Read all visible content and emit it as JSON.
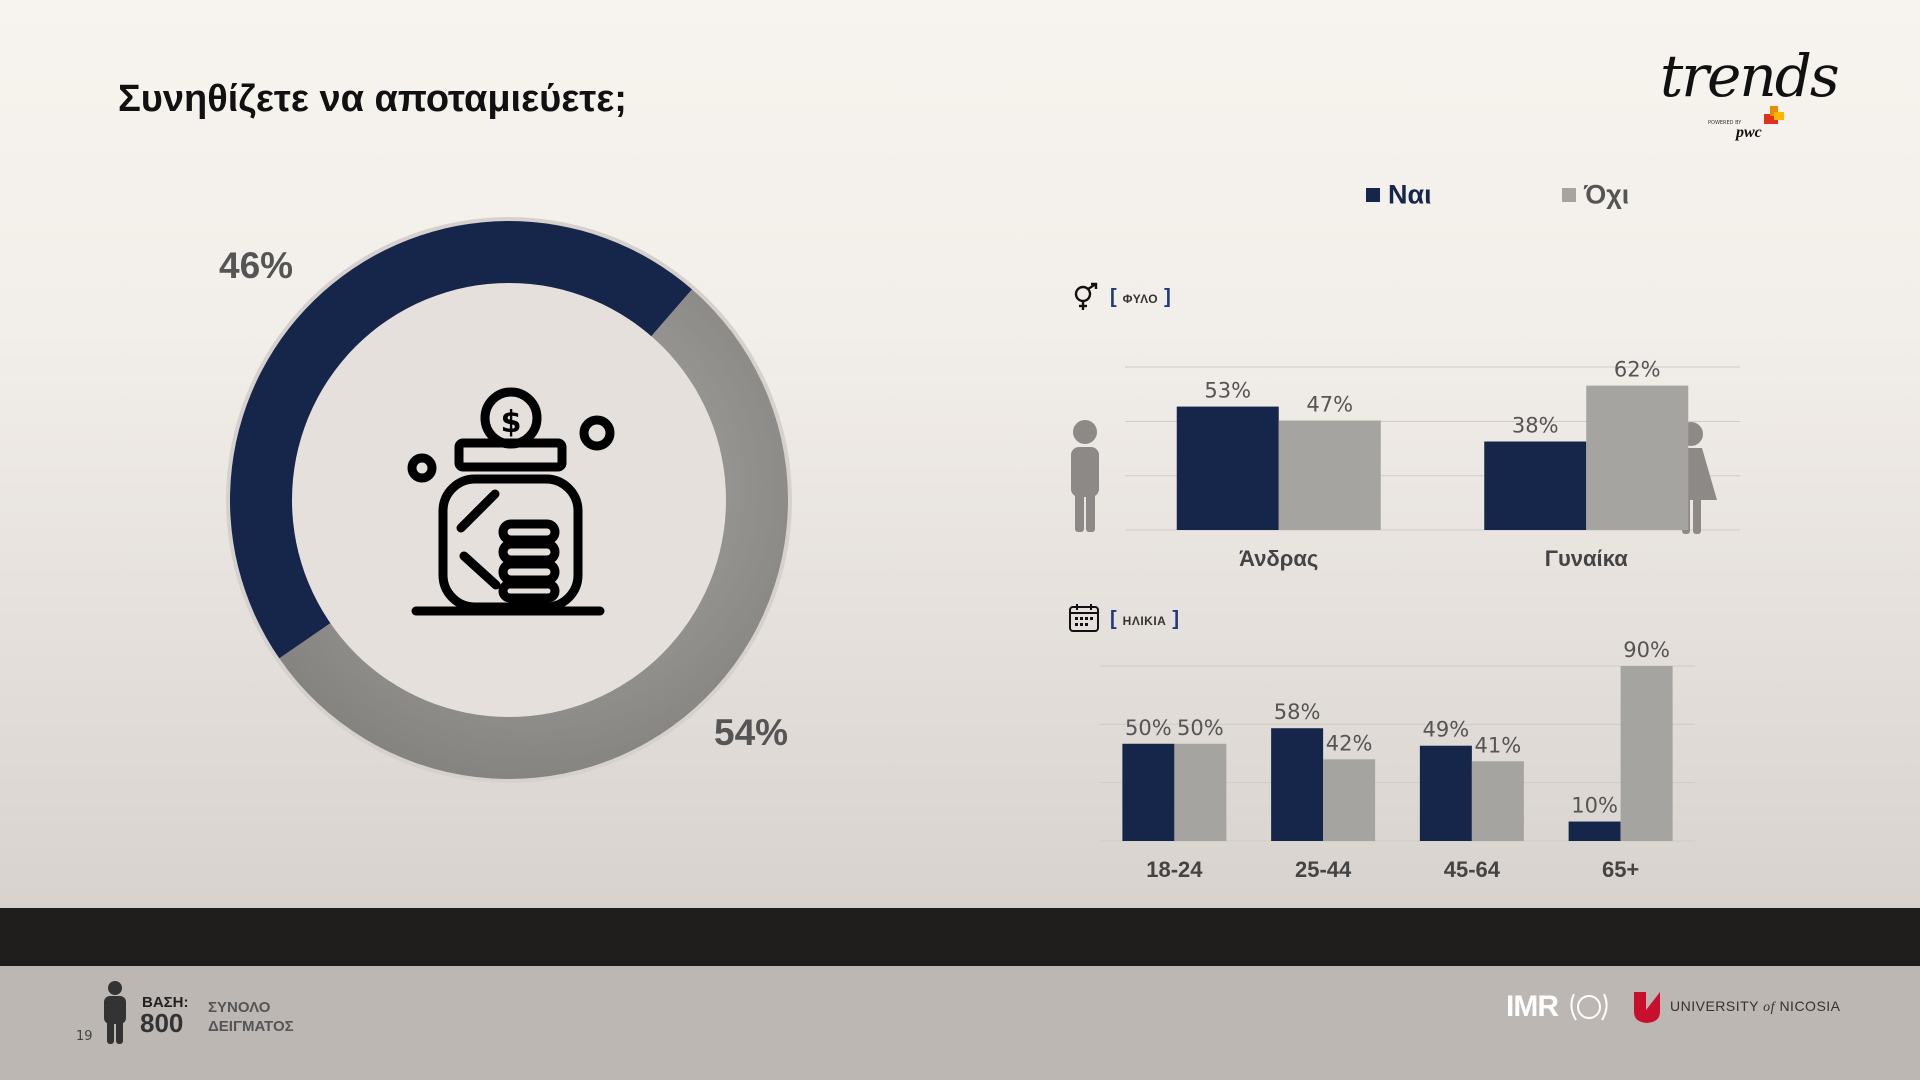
{
  "title": "Συνηθίζετε να αποταμιεύετε;",
  "brand": {
    "name": "trends",
    "powered_by": "POWERED BY",
    "partner": "pwc"
  },
  "legend": {
    "yes": "Ναι",
    "no": "Όχι"
  },
  "colors": {
    "yes": "#16264a",
    "no": "#a6a4a0",
    "donut_no": "#8f8d8a"
  },
  "sections": {
    "gender": "ΦΥΛΟ",
    "age": "ΗΛΙΚΙΑ"
  },
  "chart_data": [
    {
      "type": "pie",
      "series": [
        {
          "name": "Ναι",
          "value": 46,
          "label": "46%"
        },
        {
          "name": "Όχι",
          "value": 54,
          "label": "54%"
        }
      ]
    },
    {
      "type": "bar",
      "categories": [
        "Άνδρας",
        "Γυναίκα"
      ],
      "series": [
        {
          "name": "Ναι",
          "values": [
            53,
            38
          ],
          "labels": [
            "53%",
            "38%"
          ]
        },
        {
          "name": "Όχι",
          "values": [
            47,
            62
          ],
          "labels": [
            "47%",
            "62%"
          ]
        }
      ],
      "ylim": [
        0,
        70
      ],
      "grid": true
    },
    {
      "type": "bar",
      "categories": [
        "18-24",
        "25-44",
        "45-64",
        "65+"
      ],
      "series": [
        {
          "name": "Ναι",
          "values": [
            50,
            58,
            49,
            10
          ],
          "labels": [
            "50%",
            "58%",
            "49%",
            "10%"
          ]
        },
        {
          "name": "Όχι",
          "values": [
            50,
            42,
            41,
            90
          ],
          "labels": [
            "50%",
            "42%",
            "41%",
            "90%"
          ]
        }
      ],
      "ylim": [
        0,
        90
      ],
      "grid": true
    }
  ],
  "footer": {
    "base_label": "ΒΑΣΗ:",
    "base_value": "800",
    "sample_line1": "ΣΥΝΟΛΟ",
    "sample_line2": "ΔΕΙΓΜΑΤΟΣ",
    "page_number": "19",
    "imr": "IMR",
    "university_pre": "UNIVERSITY",
    "university_of": "of",
    "university_post": "NICOSIA"
  }
}
